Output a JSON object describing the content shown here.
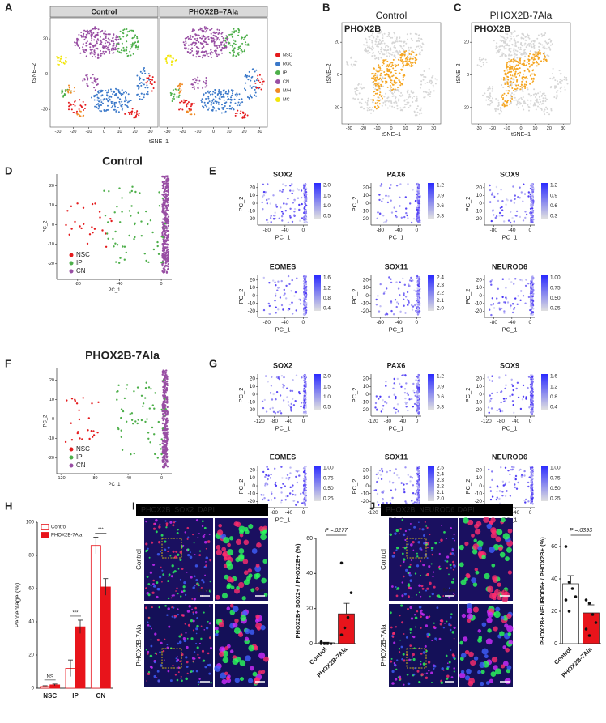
{
  "panels": {
    "A": {
      "label": "A",
      "facets": [
        "Control",
        "PHOX2B–7Ala"
      ],
      "xlabel": "tSNE–1",
      "ylabel": "tSNE–2",
      "xticks": [
        -30,
        -20,
        -10,
        0,
        10,
        20,
        30
      ],
      "yticks": [
        -20,
        0,
        20
      ],
      "legend": [
        {
          "name": "NSC",
          "color": "#e41a1c"
        },
        {
          "name": "RGC",
          "color": "#3a78c9"
        },
        {
          "name": "IP",
          "color": "#4daf4a"
        },
        {
          "name": "CN",
          "color": "#984ea3"
        },
        {
          "name": "M/H",
          "color": "#f08a24"
        },
        {
          "name": "MC",
          "color": "#f2e60a"
        }
      ]
    },
    "B": {
      "label": "B",
      "title": "Control",
      "gene": "PHOX2B",
      "gene_color": "#f5a623",
      "xlabel": "tSNE–1",
      "ylabel": "tSNE–2",
      "xticks": [
        -30,
        -20,
        -10,
        0,
        10,
        20,
        30
      ],
      "yticks": [
        -20,
        0,
        20
      ]
    },
    "C": {
      "label": "C",
      "title": "PHOX2B-7Ala",
      "gene": "PHOX2B",
      "gene_color": "#f5a623",
      "xlabel": "tSNE–1",
      "ylabel": "tSNE–2",
      "xticks": [
        -30,
        -20,
        -10,
        0,
        10,
        20,
        30
      ],
      "yticks": [
        -20,
        0,
        20
      ]
    },
    "D": {
      "label": "D",
      "title": "Control",
      "xlabel": "PC_1",
      "ylabel": "PC_2",
      "xticks": [
        -80,
        -40,
        0
      ],
      "yticks": [
        -20,
        -10,
        0,
        10,
        20
      ],
      "legend": [
        {
          "name": "NSC",
          "color": "#e41a1c"
        },
        {
          "name": "IP",
          "color": "#4daf4a"
        },
        {
          "name": "CN",
          "color": "#984ea3"
        }
      ]
    },
    "E": {
      "label": "E",
      "xlabel": "PC_1",
      "ylabel": "PC_2",
      "xticks": [
        -80,
        -40,
        0
      ],
      "yticks": [
        -20,
        -10,
        0,
        10,
        20
      ],
      "plots": [
        {
          "gene": "SOX2",
          "scale": [
            "2.0",
            "1.5",
            "1.0",
            "0.5"
          ]
        },
        {
          "gene": "PAX6",
          "scale": [
            "1.2",
            "0.9",
            "0.6",
            "0.3"
          ]
        },
        {
          "gene": "SOX9",
          "scale": [
            "1.2",
            "0.9",
            "0.6",
            "0.3"
          ]
        },
        {
          "gene": "EOMES",
          "scale": [
            "1.6",
            "1.2",
            "0.8",
            "0.4"
          ]
        },
        {
          "gene": "SOX11",
          "scale": [
            "2.4",
            "2.3",
            "2.2",
            "2.1",
            "2.0"
          ]
        },
        {
          "gene": "NEUROD6",
          "scale": [
            "1.00",
            "0.75",
            "0.50",
            "0.25"
          ]
        }
      ]
    },
    "F": {
      "label": "F",
      "title": "PHOX2B-7Ala",
      "xlabel": "PC_1",
      "ylabel": "PC_2",
      "xticks": [
        -120,
        -80,
        -40,
        0
      ],
      "yticks": [
        -20,
        -10,
        0,
        10,
        20
      ],
      "legend": [
        {
          "name": "NSC",
          "color": "#e41a1c"
        },
        {
          "name": "IP",
          "color": "#4daf4a"
        },
        {
          "name": "CN",
          "color": "#984ea3"
        }
      ]
    },
    "G": {
      "label": "G",
      "xlabel": "PC_1",
      "ylabel": "PC_2",
      "xticks": [
        -120,
        -80,
        -40,
        0
      ],
      "yticks": [
        -20,
        -10,
        0,
        10,
        20
      ],
      "plots": [
        {
          "gene": "SOX2",
          "scale": [
            "2.0",
            "1.5",
            "1.0",
            "0.5"
          ]
        },
        {
          "gene": "PAX6",
          "scale": [
            "1.2",
            "0.9",
            "0.6",
            "0.3"
          ]
        },
        {
          "gene": "SOX9",
          "scale": [
            "1.6",
            "1.2",
            "0.8",
            "0.4"
          ]
        },
        {
          "gene": "EOMES",
          "scale": [
            "1.00",
            "0.75",
            "0.50",
            "0.25"
          ]
        },
        {
          "gene": "SOX11",
          "scale": [
            "2.5",
            "2.4",
            "2.3",
            "2.2",
            "2.1",
            "2.0"
          ]
        },
        {
          "gene": "NEUROD6",
          "scale": [
            "1.00",
            "0.75",
            "0.50",
            "0.25"
          ]
        }
      ]
    },
    "I": {
      "label": "I",
      "stains": [
        {
          "text": "PHOX2B",
          "color": "#3cdc3c"
        },
        {
          "text": "SOX2",
          "color": "#ff3030"
        },
        {
          "text": "DAPI",
          "color": "#5a7cff"
        }
      ],
      "rows": [
        "Control",
        "PHOX2B-7Ala"
      ],
      "scalebar": "50 µm"
    },
    "J": {
      "label": "J",
      "stains": [
        {
          "text": "PHOX2B",
          "color": "#3cdc3c"
        },
        {
          "text": "NEUROD6",
          "color": "#ff3030"
        },
        {
          "text": "DAPI",
          "color": "#5a7cff"
        }
      ],
      "rows": [
        "Control",
        "PHOX2B-7Ala"
      ],
      "scalebar": "50 µm"
    }
  },
  "chart_data": [
    {
      "type": "grouped_bar",
      "label": "H",
      "ylabel": "Percentage (%)",
      "categories": [
        "NSC",
        "IP",
        "CN"
      ],
      "series": [
        {
          "name": "Control",
          "color": "#ffffff",
          "values": [
            1,
            12,
            86
          ],
          "errors": [
            0.5,
            5,
            5
          ]
        },
        {
          "name": "PHOX2B-7Ala",
          "color": "#e8141b",
          "values": [
            2,
            37,
            61
          ],
          "errors": [
            0.5,
            4,
            5
          ]
        }
      ],
      "annotations": [
        "NS",
        "***",
        "***"
      ],
      "ylim": [
        0,
        100
      ],
      "yticks": [
        0,
        20,
        40,
        60,
        80,
        100
      ],
      "legend": "upper left"
    },
    {
      "type": "dot_bar",
      "ylabel": "PHOX2B+ SOX2+ / PHOX2B+ (%)",
      "categories": [
        "Control",
        "PHOX2B-7Ala"
      ],
      "values": [
        0.5,
        17
      ],
      "errors": [
        0.3,
        6
      ],
      "colors": [
        "#ffffff",
        "#e8141b"
      ],
      "points": [
        [
          0,
          0,
          0,
          0,
          1
        ],
        [
          5,
          9,
          15,
          29,
          46
        ]
      ],
      "annotation": "P =.0277",
      "ylim": [
        0,
        60
      ],
      "yticks": [
        0,
        20,
        40,
        60
      ]
    },
    {
      "type": "dot_bar",
      "ylabel": "PHOX2B+ NEUROD6+ / PHOX2B+ (%)",
      "categories": [
        "Control",
        "PHOX2B-7Ala"
      ],
      "values": [
        37,
        19
      ],
      "errors": [
        5,
        5
      ],
      "colors": [
        "#ffffff",
        "#e8141b"
      ],
      "points": [
        [
          60,
          38,
          34,
          29,
          27,
          20
        ],
        [
          27,
          25,
          18,
          13,
          9,
          5
        ]
      ],
      "annotation": "P =.0393",
      "ylim": [
        0,
        65
      ],
      "yticks": [
        0,
        20,
        40,
        60
      ]
    }
  ]
}
